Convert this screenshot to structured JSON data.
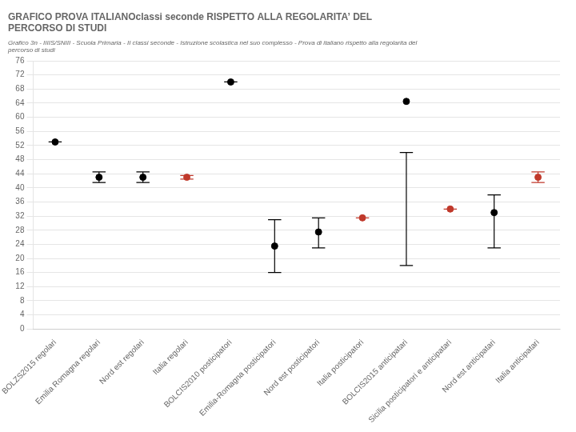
{
  "chart_data": {
    "type": "scatter",
    "title": "GRAFICO PROVA ITALIANOclassi seconde RISPETTO ALLA REGOLARITA’ DEL\nPERCORSO DI STUDI",
    "subtitle": "Grafico 3n - IIIIS/SNIII - Scuola Primaria - II classi seconde - Istruzione scolastica nel suo complesso - Prova di italiano rispetto alla regolarita del\npercorso di studi",
    "categories": [
      "BOLZS2015 regolari",
      "Emilia Romagna regolari",
      "Nord est regolari",
      "Italia regolari",
      "BOLCIS2010 posticipatori",
      "Emilia-Romagna posticipatori",
      "Nord est posticipatori",
      "Italia posticipatori",
      "BOLCIS2015 anticipatari",
      "Sicilia posticipatori e anticipatari",
      "Nord est anticipatari",
      "Italia anticipatari"
    ],
    "values": [
      53.0,
      43.0,
      43.0,
      43.0,
      70.0,
      23.5,
      27.5,
      31.5,
      64.5,
      34.0,
      33.0,
      43.0
    ],
    "error_low": [
      53.0,
      41.5,
      41.5,
      42.5,
      70.0,
      16.0,
      23.0,
      31.5,
      18.0,
      34.0,
      23.0,
      41.5
    ],
    "error_high": [
      53.0,
      44.5,
      44.5,
      43.5,
      70.0,
      31.0,
      31.5,
      31.5,
      50.0,
      34.0,
      38.0,
      44.5
    ],
    "colors": [
      "#000000",
      "#000000",
      "#000000",
      "#C0392B",
      "#000000",
      "#000000",
      "#000000",
      "#C0392B",
      "#000000",
      "#C0392B",
      "#000000",
      "#C0392B"
    ],
    "marker": "circle",
    "ylim": [
      0,
      76
    ],
    "yticks": [
      0,
      4,
      8,
      12,
      16,
      20,
      24,
      28,
      32,
      36,
      40,
      44,
      48,
      52,
      56,
      60,
      64,
      68,
      72,
      76
    ],
    "grid": true
  }
}
